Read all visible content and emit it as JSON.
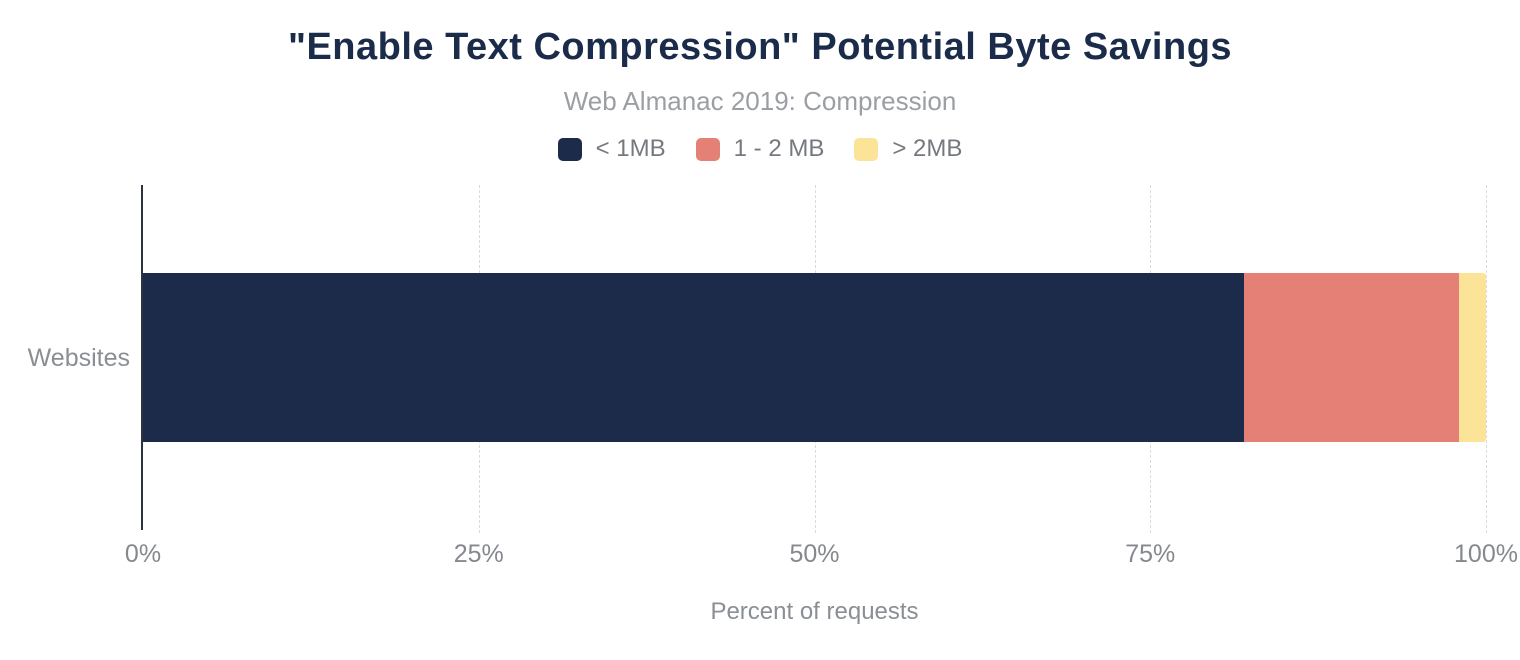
{
  "title": "\"Enable Text Compression\" Potential Byte Savings",
  "subtitle": "Web Almanac 2019: Compression",
  "colors": {
    "title_text": "#1B2B4A",
    "navy": "#1C2B49",
    "salmon": "#E58077",
    "yellow": "#FBE398",
    "axis_line": "#2B3240",
    "gridline": "#DBDBDB",
    "muted_text": "#85898F"
  },
  "legend": {
    "items": [
      {
        "label": "< 1MB",
        "color": "#1C2B49"
      },
      {
        "label": "1 - 2 MB",
        "color": "#E58077"
      },
      {
        "label": "> 2MB",
        "color": "#FBE398"
      }
    ]
  },
  "chart_data": {
    "type": "bar",
    "orientation": "horizontal",
    "stacked": true,
    "title": "\"Enable Text Compression\" Potential Byte Savings",
    "subtitle": "Web Almanac 2019: Compression",
    "categories": [
      "Websites"
    ],
    "series": [
      {
        "name": "< 1MB",
        "color": "#1C2B49",
        "values": [
          82
        ]
      },
      {
        "name": "1 - 2 MB",
        "color": "#E58077",
        "values": [
          16
        ]
      },
      {
        "name": "> 2MB",
        "color": "#FBE398",
        "values": [
          2
        ]
      }
    ],
    "xlabel": "Percent of requests",
    "ylabel": "",
    "xlim": [
      0,
      100
    ],
    "xticks": [
      "0%",
      "25%",
      "50%",
      "75%",
      "100%"
    ],
    "xtick_positions": [
      0,
      25,
      50,
      75,
      100
    ],
    "grid": "vertical-dashed",
    "legend_position": "top-center"
  },
  "axis_labels": {
    "y_category": "Websites",
    "x_title": "Percent of requests"
  }
}
